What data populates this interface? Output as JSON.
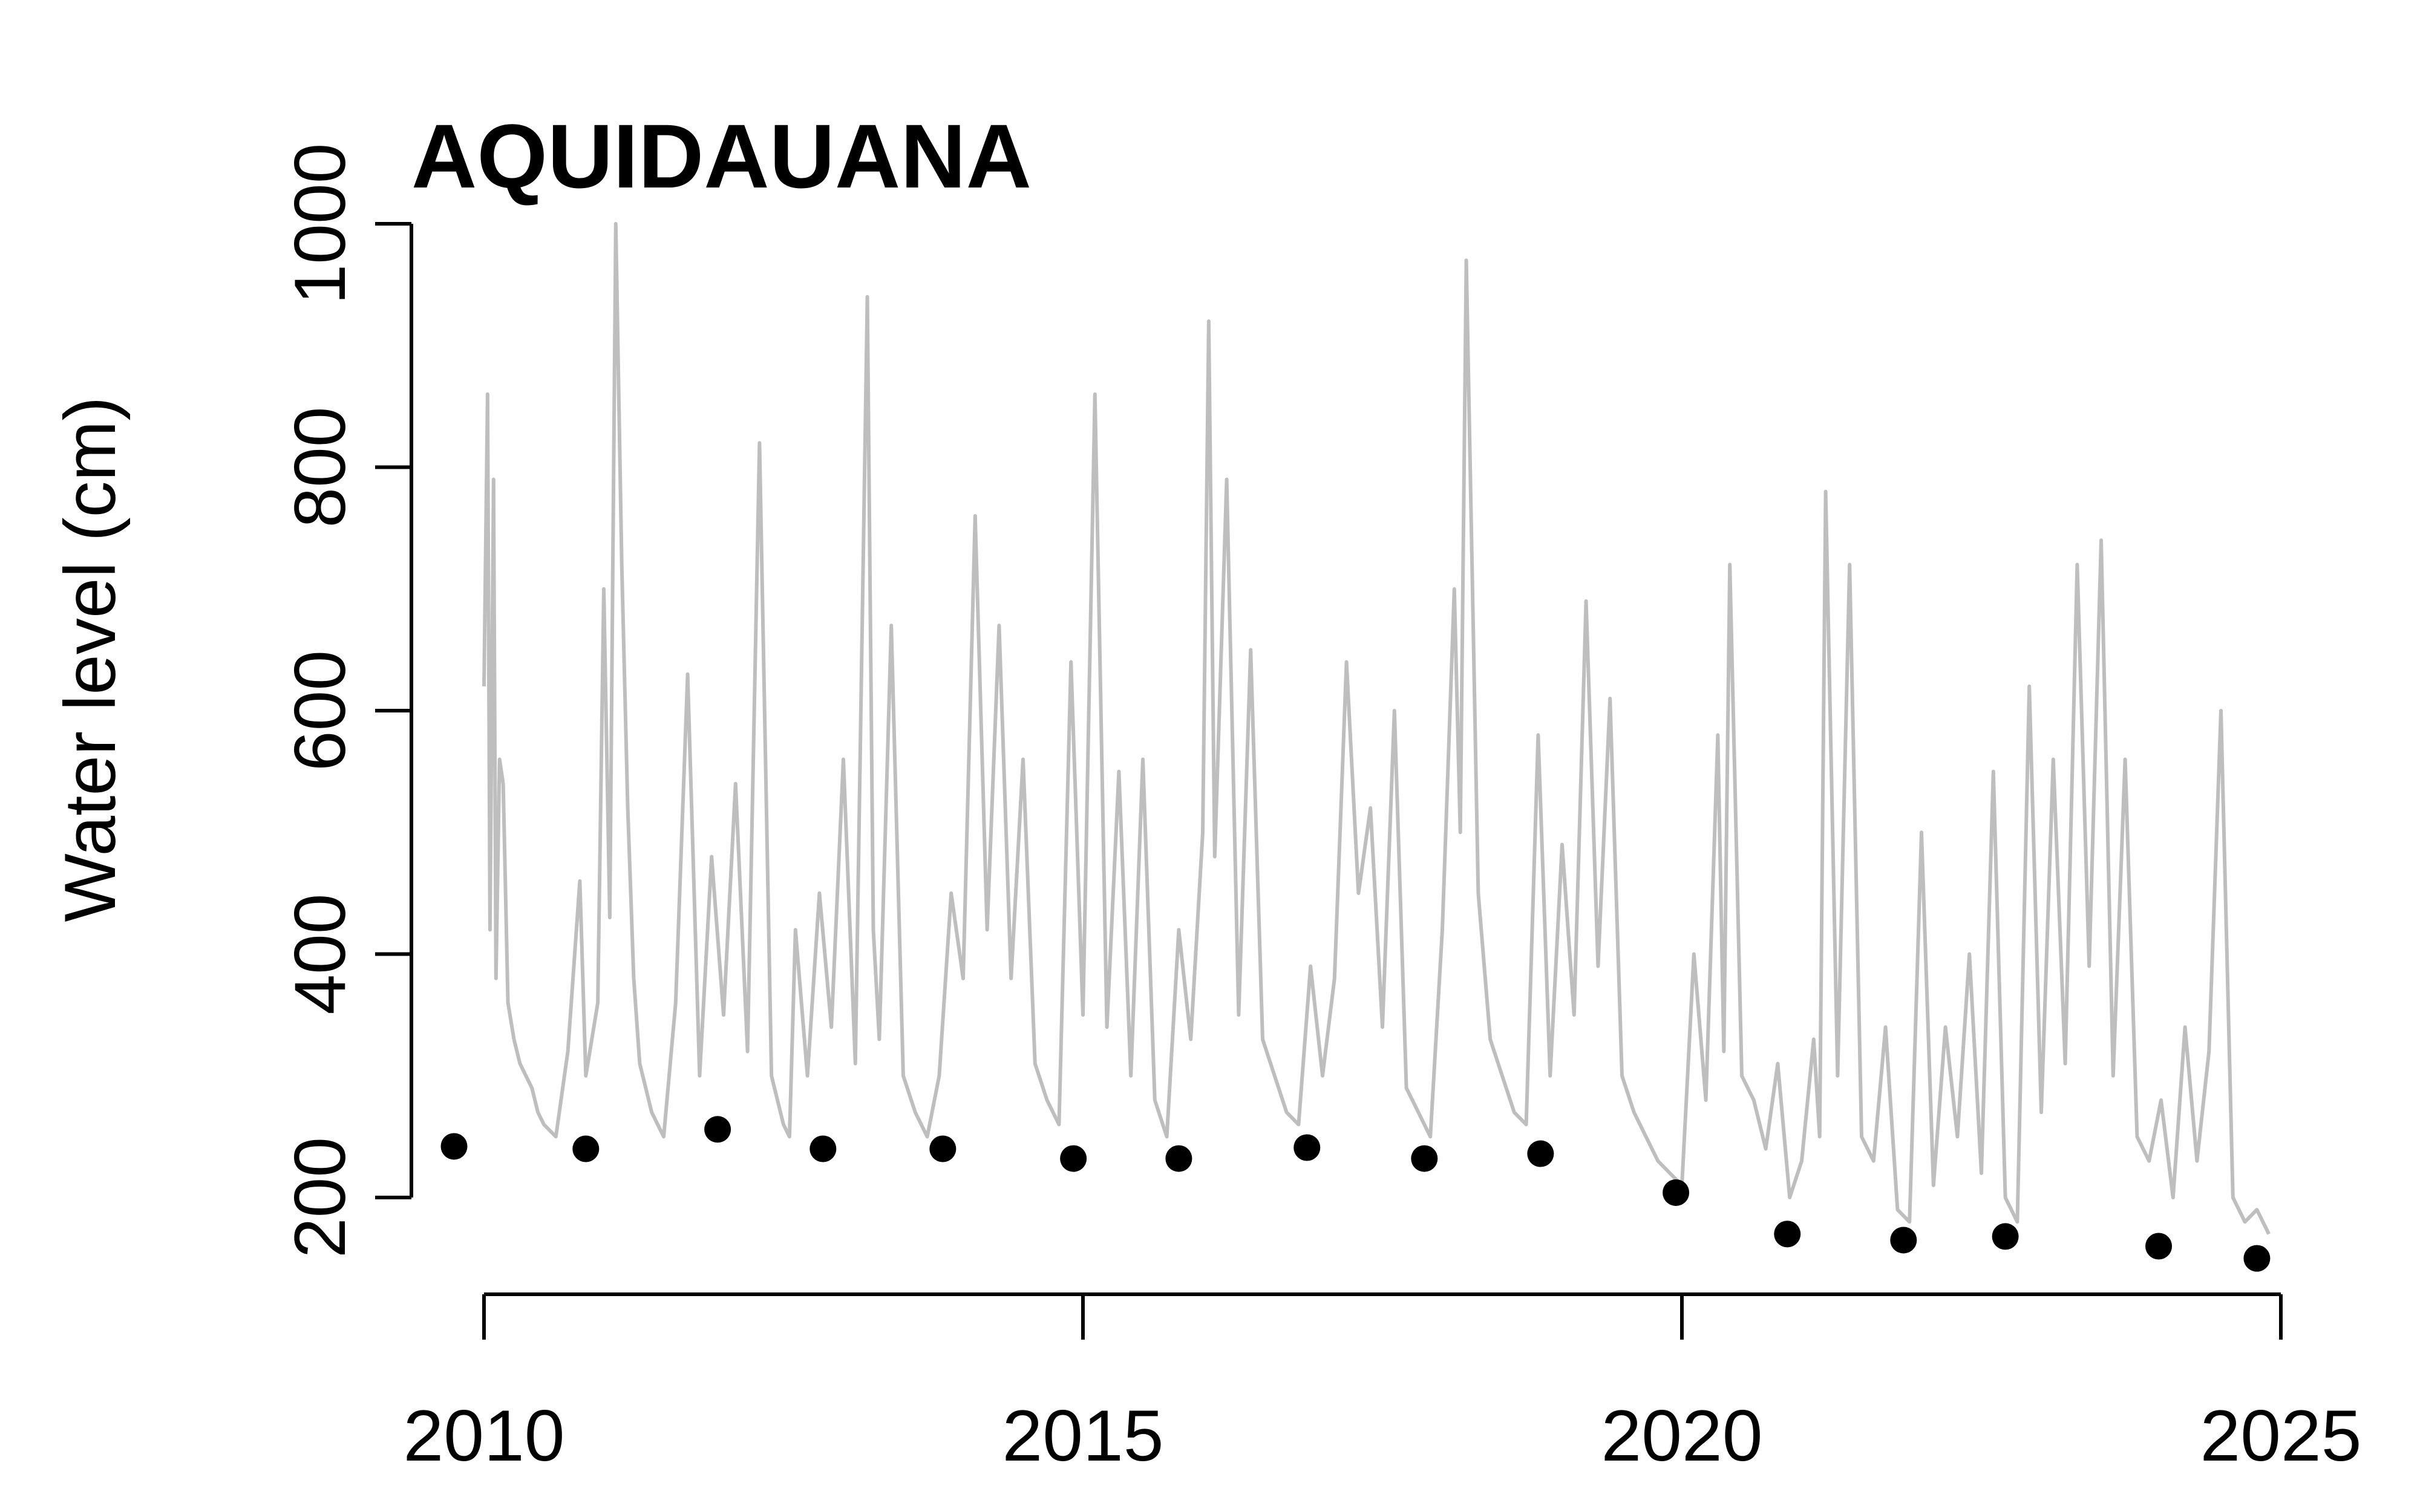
{
  "chart_data": {
    "type": "line",
    "title": "AQUIDAUANA",
    "xlabel": "",
    "ylabel": "Water level (cm)",
    "xlim": [
      2009.5,
      2025
    ],
    "ylim": [
      150,
      1000
    ],
    "x_ticks": [
      2010,
      2015,
      2020,
      2025
    ],
    "y_ticks": [
      200,
      400,
      600,
      800,
      1000
    ],
    "grid": false,
    "legend": "none",
    "series": [
      {
        "color": "#bebebe",
        "style": "line",
        "x": [
          2010.0,
          2010.03,
          2010.05,
          2010.08,
          2010.1,
          2010.13,
          2010.16,
          2010.2,
          2010.25,
          2010.3,
          2010.35,
          2010.4,
          2010.45,
          2010.5,
          2010.6,
          2010.7,
          2010.8,
          2010.85,
          2010.95,
          2011.0,
          2011.05,
          2011.1,
          2011.15,
          2011.2,
          2011.25,
          2011.3,
          2011.35,
          2011.4,
          2011.45,
          2011.5,
          2011.6,
          2011.7,
          2011.8,
          2011.9,
          2012.0,
          2012.1,
          2012.2,
          2012.3,
          2012.4,
          2012.5,
          2012.55,
          2012.6,
          2012.7,
          2012.8,
          2012.9,
          2013.0,
          2013.1,
          2013.2,
          2013.25,
          2013.3,
          2013.4,
          2013.5,
          2013.6,
          2013.7,
          2013.8,
          2013.9,
          2014.0,
          2014.1,
          2014.2,
          2014.3,
          2014.4,
          2014.5,
          2014.6,
          2014.7,
          2014.8,
          2014.9,
          2015.0,
          2015.1,
          2015.2,
          2015.3,
          2015.4,
          2015.5,
          2015.6,
          2015.7,
          2015.8,
          2015.9,
          2016.0,
          2016.05,
          2016.1,
          2016.2,
          2016.3,
          2016.4,
          2016.5,
          2016.6,
          2016.7,
          2016.8,
          2016.9,
          2017.0,
          2017.1,
          2017.2,
          2017.3,
          2017.4,
          2017.5,
          2017.6,
          2017.7,
          2017.8,
          2017.9,
          2018.0,
          2018.1,
          2018.15,
          2018.2,
          2018.3,
          2018.4,
          2018.5,
          2018.6,
          2018.7,
          2018.8,
          2018.9,
          2019.0,
          2019.1,
          2019.2,
          2019.3,
          2019.4,
          2019.5,
          2019.6,
          2019.7,
          2019.8,
          2019.9,
          2020.0,
          2020.1,
          2020.2,
          2020.3,
          2020.35,
          2020.4,
          2020.5,
          2020.6,
          2020.7,
          2020.8,
          2020.9,
          2021.0,
          2021.1,
          2021.15,
          2021.2,
          2021.3,
          2021.4,
          2021.5,
          2021.6,
          2021.7,
          2021.8,
          2021.9,
          2022.0,
          2022.1,
          2022.2,
          2022.3,
          2022.4,
          2022.5,
          2022.6,
          2022.7,
          2022.8,
          2022.9,
          2023.0,
          2023.1,
          2023.2,
          2023.3,
          2023.4,
          2023.5,
          2023.6,
          2023.7,
          2023.8,
          2023.9,
          2024.0,
          2024.1,
          2024.2,
          2024.3,
          2024.4,
          2024.5,
          2024.6,
          2024.7,
          2024.8,
          2024.9
        ],
        "y": [
          620,
          860,
          420,
          790,
          380,
          560,
          540,
          360,
          330,
          310,
          300,
          290,
          270,
          260,
          250,
          320,
          460,
          300,
          360,
          700,
          430,
          1000,
          720,
          520,
          380,
          310,
          290,
          270,
          260,
          250,
          360,
          630,
          300,
          480,
          350,
          540,
          320,
          820,
          300,
          260,
          250,
          420,
          300,
          450,
          340,
          560,
          310,
          940,
          420,
          330,
          670,
          300,
          270,
          250,
          300,
          450,
          380,
          760,
          420,
          670,
          380,
          560,
          310,
          280,
          260,
          640,
          350,
          860,
          340,
          550,
          300,
          560,
          280,
          250,
          420,
          330,
          500,
          920,
          480,
          790,
          350,
          650,
          330,
          300,
          270,
          260,
          390,
          300,
          380,
          640,
          450,
          520,
          340,
          600,
          290,
          270,
          250,
          420,
          700,
          500,
          970,
          450,
          330,
          300,
          270,
          260,
          580,
          300,
          490,
          350,
          690,
          390,
          610,
          300,
          270,
          250,
          230,
          220,
          210,
          400,
          280,
          580,
          320,
          720,
          300,
          280,
          240,
          310,
          200,
          230,
          330,
          250,
          780,
          300,
          720,
          250,
          230,
          340,
          190,
          180,
          500,
          210,
          340,
          250,
          400,
          220,
          550,
          200,
          180,
          620,
          270,
          560,
          310,
          720,
          390,
          740,
          300,
          560,
          250,
          230,
          280,
          200,
          340,
          230,
          320,
          600,
          200,
          180,
          190,
          170
        ]
      },
      {
        "color": "#000000",
        "style": "points",
        "x": [
          2009.75,
          2010.85,
          2011.95,
          2012.83,
          2013.83,
          2014.92,
          2015.8,
          2016.87,
          2017.85,
          2018.82,
          2019.95,
          2020.88,
          2021.85,
          2022.7,
          2023.98,
          2024.8
        ],
        "y": [
          242,
          240,
          256,
          240,
          240,
          232,
          232,
          241,
          232,
          236,
          204,
          170,
          165,
          168,
          160,
          150
        ]
      }
    ]
  }
}
